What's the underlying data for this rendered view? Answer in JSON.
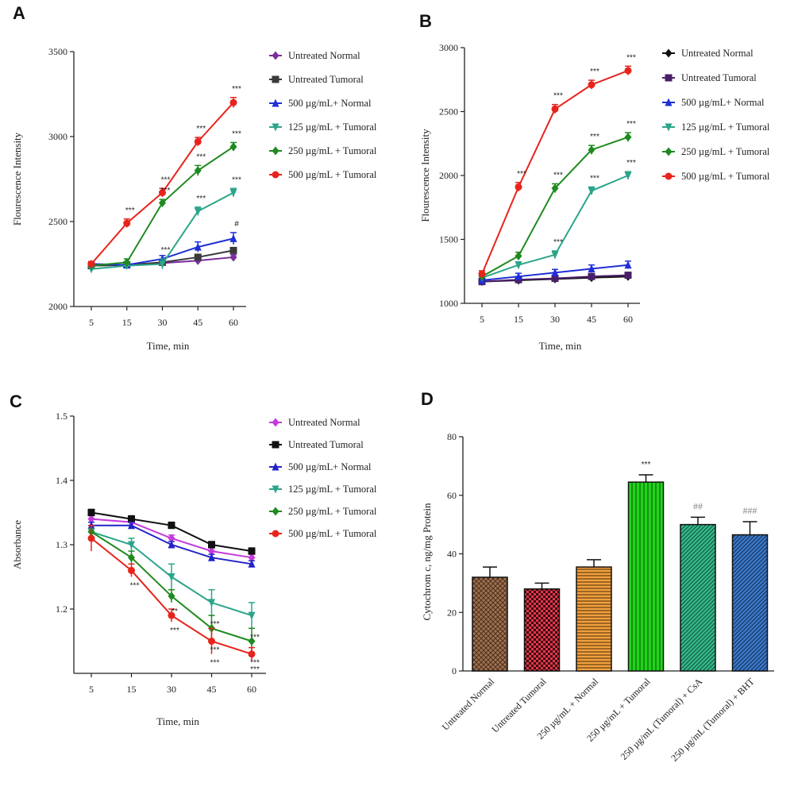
{
  "panels": [
    {
      "letter": "A"
    },
    {
      "letter": "B"
    },
    {
      "letter": "C"
    },
    {
      "letter": "D"
    }
  ],
  "chart_data": [
    {
      "type": "line",
      "panel": "A",
      "title": "",
      "xlabel": "Time, min",
      "ylabel": "Flourescence Intensity",
      "x": [
        5,
        15,
        30,
        45,
        60
      ],
      "x_ticks": [
        "5",
        "15",
        "30",
        "45",
        "60"
      ],
      "ylim": [
        2000,
        3500
      ],
      "y_ticks": [
        "2000",
        "2500",
        "3000",
        "3500"
      ],
      "legend_position": "right",
      "series": [
        {
          "name": "Untreated Normal",
          "color": "#7b2d9c",
          "marker": "diamond",
          "values": [
            2240,
            2245,
            2255,
            2270,
            2290
          ],
          "err": [
            15,
            15,
            15,
            15,
            15
          ],
          "sig": [
            "",
            "",
            "",
            "",
            ""
          ]
        },
        {
          "name": "Untreated Tumoral",
          "color": "#3a3a3a",
          "marker": "square",
          "values": [
            2240,
            2245,
            2260,
            2290,
            2330
          ],
          "err": [
            15,
            15,
            15,
            15,
            15
          ],
          "sig": [
            "",
            "",
            "",
            "",
            ""
          ]
        },
        {
          "name": "500 µg/mL+ Normal",
          "color": "#1f2fd6",
          "marker": "triangle",
          "values": [
            2250,
            2245,
            2280,
            2350,
            2400
          ],
          "err": [
            15,
            15,
            20,
            30,
            35
          ],
          "sig": [
            "",
            "",
            "",
            "",
            "#"
          ]
        },
        {
          "name": "125 µg/mL + Tumoral",
          "color": "#2aa58a",
          "marker": "invtriangle",
          "values": [
            2220,
            2240,
            2250,
            2560,
            2670
          ],
          "err": [
            15,
            20,
            30,
            25,
            25
          ],
          "sig": [
            "",
            "",
            "***",
            "***",
            "***"
          ]
        },
        {
          "name": "250 µg/mL + Tumoral",
          "color": "#1f8a1f",
          "marker": "diamond",
          "values": [
            2240,
            2260,
            2610,
            2800,
            2940
          ],
          "err": [
            15,
            20,
            20,
            30,
            25
          ],
          "sig": [
            "",
            "",
            "***",
            "***",
            "***"
          ]
        },
        {
          "name": "500 µg/mL + Tumoral",
          "color": "#e8231c",
          "marker": "circle",
          "values": [
            2250,
            2490,
            2670,
            2970,
            3200
          ],
          "err": [
            15,
            25,
            25,
            25,
            30
          ],
          "sig": [
            "",
            "***",
            "***",
            "***",
            "***"
          ]
        }
      ]
    },
    {
      "type": "line",
      "panel": "B",
      "title": "",
      "xlabel": "Time, min",
      "ylabel": "Flourescence Intensity",
      "x": [
        5,
        15,
        30,
        45,
        60
      ],
      "x_ticks": [
        "5",
        "15",
        "30",
        "45",
        "60"
      ],
      "ylim": [
        1000,
        3000
      ],
      "y_ticks": [
        "1000",
        "1500",
        "2000",
        "2500",
        "3000"
      ],
      "legend_position": "right",
      "series": [
        {
          "name": "Untreated Normal",
          "color": "#111111",
          "marker": "diamond",
          "values": [
            1170,
            1180,
            1190,
            1200,
            1210
          ],
          "err": [
            12,
            12,
            12,
            12,
            12
          ],
          "sig": [
            "",
            "",
            "",
            "",
            ""
          ]
        },
        {
          "name": "Untreated Tumoral",
          "color": "#4a1f6a",
          "marker": "square",
          "values": [
            1170,
            1185,
            1195,
            1210,
            1220
          ],
          "err": [
            12,
            12,
            12,
            12,
            12
          ],
          "sig": [
            "",
            "",
            "",
            "",
            ""
          ]
        },
        {
          "name": "500 µg/mL+ Normal",
          "color": "#1f2fd6",
          "marker": "triangle",
          "values": [
            1180,
            1210,
            1240,
            1270,
            1300
          ],
          "err": [
            15,
            25,
            25,
            30,
            30
          ],
          "sig": [
            "",
            "",
            "",
            "",
            ""
          ]
        },
        {
          "name": "125 µg/mL + Tumoral",
          "color": "#2aa58a",
          "marker": "invtriangle",
          "values": [
            1200,
            1300,
            1380,
            1880,
            2000
          ],
          "err": [
            20,
            25,
            30,
            30,
            30
          ],
          "sig": [
            "",
            "",
            "***",
            "***",
            "***"
          ]
        },
        {
          "name": "250 µg/mL + Tumoral",
          "color": "#1f8a1f",
          "marker": "diamond",
          "values": [
            1210,
            1370,
            1900,
            2200,
            2300
          ],
          "err": [
            20,
            30,
            35,
            35,
            35
          ],
          "sig": [
            "",
            "",
            "***",
            "***",
            "***"
          ]
        },
        {
          "name": "500 µg/mL + Tumoral",
          "color": "#e8231c",
          "marker": "circle",
          "values": [
            1230,
            1910,
            2520,
            2710,
            2820
          ],
          "err": [
            25,
            35,
            35,
            35,
            35
          ],
          "sig": [
            "",
            "***",
            "***",
            "***",
            "***"
          ]
        }
      ]
    },
    {
      "type": "line",
      "panel": "C",
      "title": "",
      "xlabel": "Time, min",
      "ylabel": "Absorbance",
      "x": [
        5,
        15,
        30,
        45,
        60
      ],
      "x_ticks": [
        "5",
        "15",
        "30",
        "45",
        "60"
      ],
      "ylim": [
        1.1,
        1.5
      ],
      "y_ticks": [
        "1.2",
        "1.3",
        "1.4",
        "1.5"
      ],
      "legend_position": "right",
      "series": [
        {
          "name": "Untreated Normal",
          "color": "#c43adb",
          "marker": "diamond",
          "values": [
            1.34,
            1.335,
            1.31,
            1.29,
            1.28
          ],
          "err": [
            0.005,
            0.005,
            0.005,
            0.005,
            0.005
          ],
          "sig": [
            "",
            "",
            "",
            "",
            ""
          ]
        },
        {
          "name": "Untreated Tumoral",
          "color": "#111111",
          "marker": "square",
          "values": [
            1.35,
            1.34,
            1.33,
            1.3,
            1.29
          ],
          "err": [
            0.005,
            0.005,
            0.005,
            0.005,
            0.005
          ],
          "sig": [
            "",
            "",
            "",
            "",
            ""
          ]
        },
        {
          "name": "500 µg/mL+ Normal",
          "color": "#2323c8",
          "marker": "triangle",
          "values": [
            1.33,
            1.33,
            1.3,
            1.28,
            1.27
          ],
          "err": [
            0.005,
            0.005,
            0.005,
            0.005,
            0.005
          ],
          "sig": [
            "",
            "",
            "",
            "",
            ""
          ]
        },
        {
          "name": "125 µg/mL + Tumoral",
          "color": "#2aa58a",
          "marker": "invtriangle",
          "values": [
            1.32,
            1.3,
            1.25,
            1.21,
            1.19
          ],
          "err": [
            0.01,
            0.01,
            0.02,
            0.02,
            0.02
          ],
          "sig": [
            "",
            "",
            "",
            "***",
            "***"
          ]
        },
        {
          "name": "250 µg/mL + Tumoral",
          "color": "#1f8a1f",
          "marker": "diamond",
          "values": [
            1.32,
            1.28,
            1.22,
            1.17,
            1.15
          ],
          "err": [
            0.01,
            0.01,
            0.01,
            0.02,
            0.02
          ],
          "sig": [
            "",
            "",
            "**",
            "***",
            "***"
          ]
        },
        {
          "name": "500 µg/mL + Tumoral",
          "color": "#e8231c",
          "marker": "circle",
          "values": [
            1.31,
            1.26,
            1.19,
            1.15,
            1.13
          ],
          "err": [
            0.02,
            0.01,
            0.01,
            0.02,
            0.01
          ],
          "sig": [
            "",
            "***",
            "***",
            "***",
            "***"
          ]
        }
      ]
    },
    {
      "type": "bar",
      "panel": "D",
      "title": "",
      "xlabel": "",
      "ylabel": "Cytochrom c, ng/mg Protein",
      "ylim": [
        0,
        80
      ],
      "y_ticks": [
        "0",
        "20",
        "40",
        "60",
        "80"
      ],
      "categories": [
        "Untreated Normal",
        "Untreated Tumoral",
        "250 µg/mL + Normal",
        "250 µg/mL + Tumoral",
        "250 µg/mL (Tumoral) + CsA",
        "250 µg/mL (Tumoral) + BHT"
      ],
      "values": [
        32,
        28,
        35.5,
        64.5,
        50,
        46.5
      ],
      "err": [
        3.5,
        2.0,
        2.5,
        2.5,
        2.5,
        4.5
      ],
      "sig": [
        "",
        "",
        "",
        "***",
        "##",
        "###"
      ],
      "colors": [
        "#a0714f",
        "#e2364a",
        "#f0a040",
        "#22d41c",
        "#36b98a",
        "#3c78c8"
      ],
      "patterns": [
        "crosshatch",
        "checker",
        "horizontal",
        "vertical",
        "diagonal",
        "diagonal"
      ]
    }
  ]
}
